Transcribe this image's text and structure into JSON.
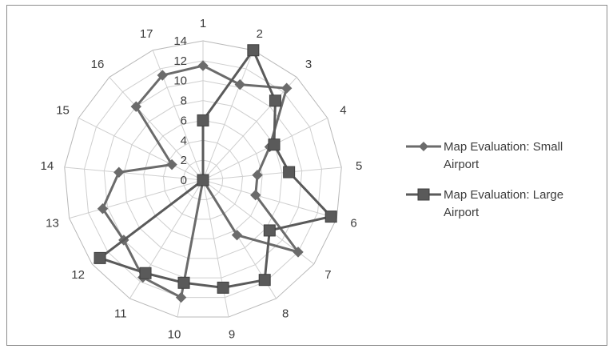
{
  "chart_data": {
    "type": "radar",
    "categories": [
      "1",
      "2",
      "3",
      "4",
      "5",
      "6",
      "7",
      "8",
      "9",
      "10",
      "11",
      "12",
      "13",
      "14",
      "15",
      "16",
      "17"
    ],
    "radial_ticks": [
      "0",
      "2",
      "4",
      "6",
      "8",
      "10",
      "12",
      "14"
    ],
    "rlim": [
      0,
      14
    ],
    "grid": true,
    "legend_position": "right",
    "series": [
      {
        "name": "Map Evaluation: Small Airport",
        "legend_lines": [
          "Map Evaluation: Small",
          "Airport"
        ],
        "marker": "diamond",
        "color": "#6b6b6b",
        "values": [
          11.5,
          10.3,
          12.5,
          7.5,
          5.5,
          5.5,
          12.0,
          6.5,
          0.0,
          12.0,
          11.5,
          10.0,
          10.5,
          8.5,
          3.5,
          10.0,
          11.3
        ]
      },
      {
        "name": "Map Evaluation: Large Airport",
        "legend_lines": [
          "Map Evaluation: Large",
          "Airport"
        ],
        "marker": "square",
        "color": "#5a5a5a",
        "values": [
          6.0,
          14.0,
          10.8,
          8.0,
          8.7,
          13.4,
          8.4,
          11.8,
          11.0,
          10.5,
          11.0,
          13.0,
          0.0,
          0.0,
          0.0,
          0.0,
          0.0
        ]
      }
    ]
  }
}
